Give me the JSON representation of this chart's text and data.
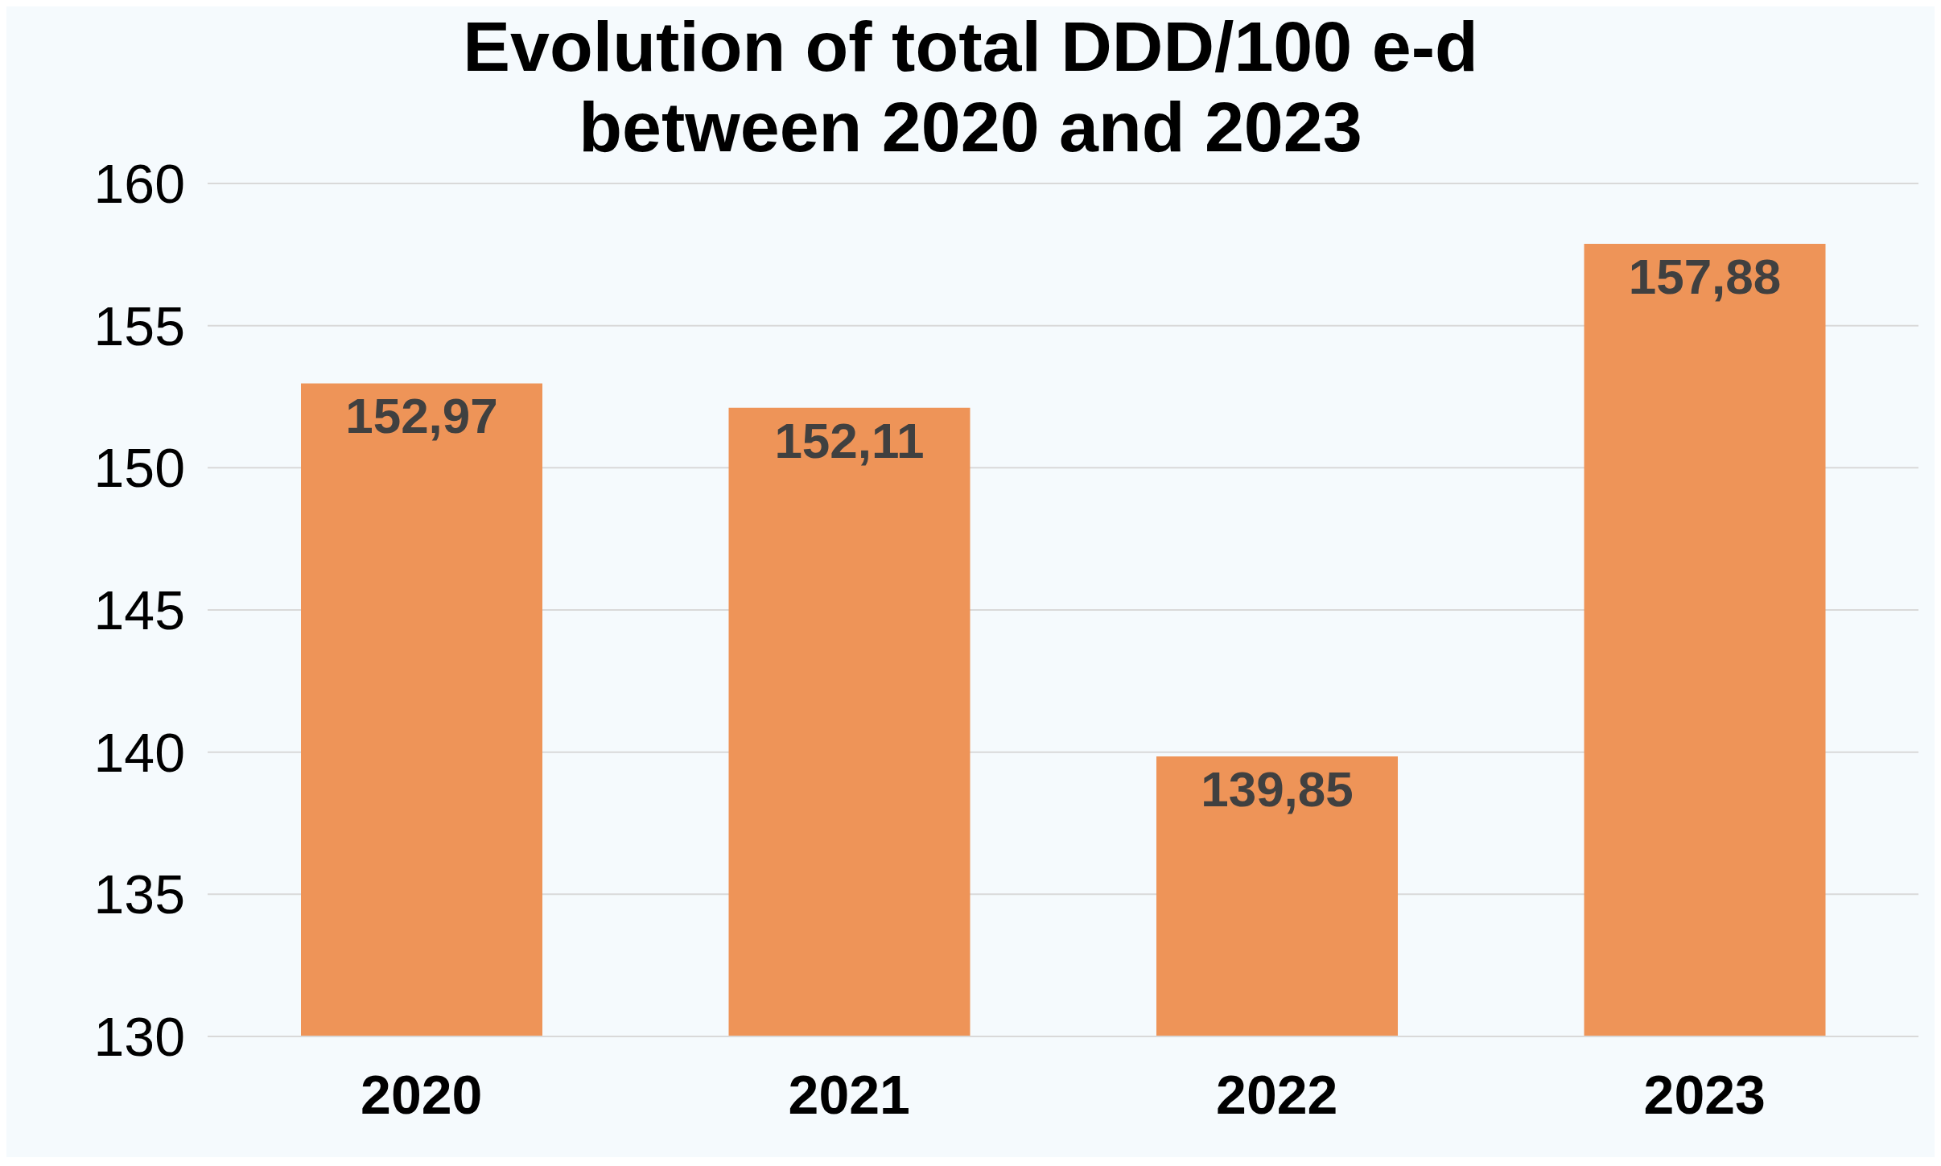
{
  "chart_data": {
    "type": "bar",
    "title": "Evolution of total DDD/100 e-d between 2020 and 2023",
    "categories": [
      "2020",
      "2021",
      "2022",
      "2023"
    ],
    "values": [
      152.97,
      152.11,
      139.85,
      157.88
    ],
    "value_labels": [
      "152,97",
      "152,11",
      "139,85",
      "157,88"
    ],
    "color": "#ee9458",
    "ylim": [
      130,
      160
    ],
    "yticks": [
      130,
      135,
      140,
      145,
      150,
      155,
      160
    ],
    "grid": "y"
  }
}
